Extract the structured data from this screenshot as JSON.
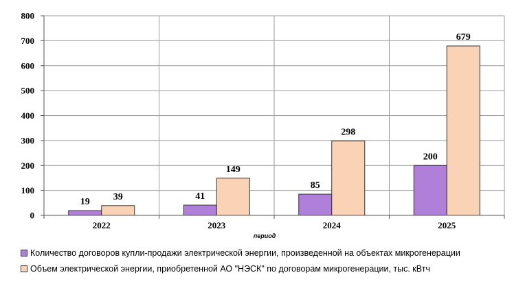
{
  "chart_data": {
    "type": "bar",
    "categories": [
      "2022",
      "2023",
      "2024",
      "2025"
    ],
    "series": [
      {
        "name": "Количество договоров купли-продажи электрической энергии, произведенной на объектах микрогенерации",
        "values": [
          19,
          41,
          85,
          200
        ],
        "color": "#b07fd9"
      },
      {
        "name": "Объем электрической энергии, приобретенной АО \"НЭСК\" по договорам микрогенерации, тыс. кВтч",
        "values": [
          39,
          149,
          298,
          679
        ],
        "color": "#fad3b6"
      }
    ],
    "xlabel": "период",
    "ylim": [
      0,
      800
    ],
    "yticks": [
      "0",
      "100",
      "200",
      "300",
      "400",
      "500",
      "600",
      "700",
      "800"
    ],
    "grid": true,
    "legend_position": "bottom"
  }
}
